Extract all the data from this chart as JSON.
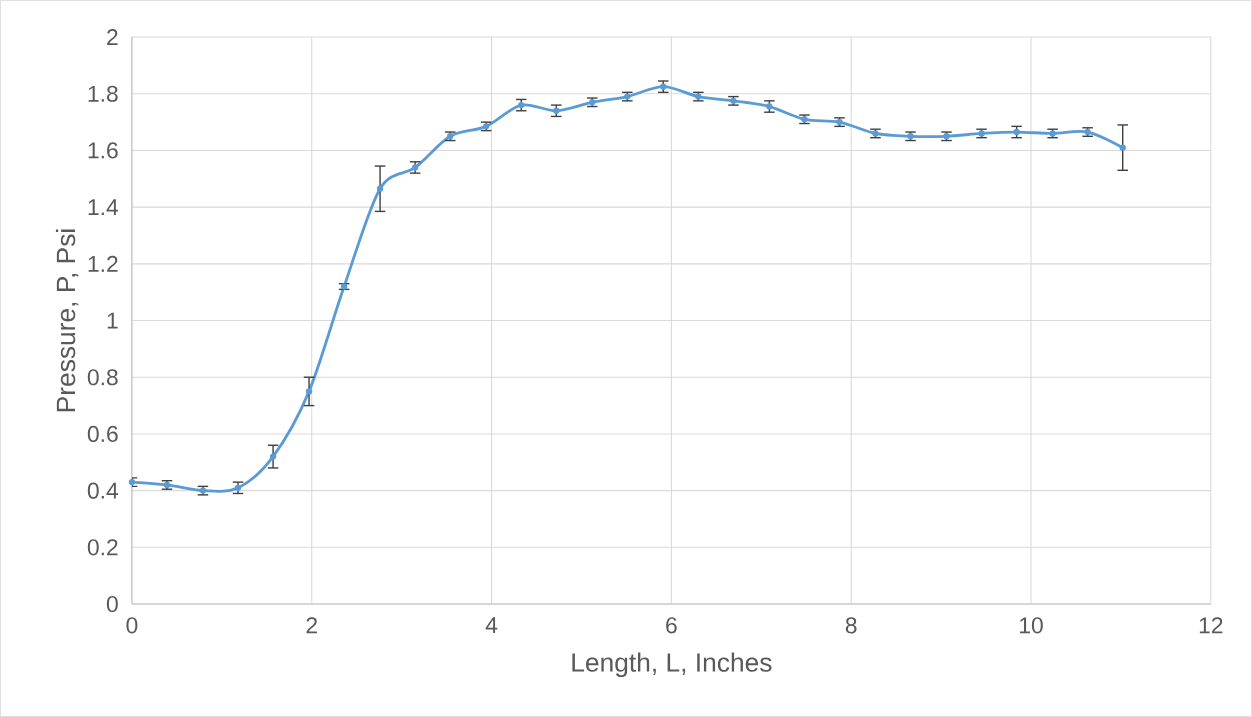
{
  "chart_data": {
    "type": "line",
    "xlabel": "Length, L, Inches",
    "ylabel": "Pressure, P, Psi",
    "xlim": [
      0,
      12
    ],
    "xticks": [
      0,
      2,
      4,
      6,
      8,
      10,
      12
    ],
    "ylim": [
      0,
      2
    ],
    "yticks": [
      0,
      0.2,
      0.4,
      0.6,
      0.8,
      1,
      1.2,
      1.4,
      1.6,
      1.8,
      2
    ],
    "grid": true,
    "marker": "circle",
    "line_style": "solid",
    "series": [
      {
        "color": "#5b9bd5",
        "x": [
          0,
          0.39,
          0.79,
          1.18,
          1.57,
          1.97,
          2.36,
          2.76,
          3.15,
          3.54,
          3.94,
          4.33,
          4.72,
          5.12,
          5.51,
          5.91,
          6.3,
          6.69,
          7.09,
          7.48,
          7.87,
          8.27,
          8.66,
          9.06,
          9.45,
          9.84,
          10.24,
          10.63,
          11.02
        ],
        "values": [
          0.43,
          0.42,
          0.4,
          0.41,
          0.52,
          0.75,
          1.12,
          1.465,
          1.54,
          1.65,
          1.685,
          1.76,
          1.74,
          1.77,
          1.79,
          1.825,
          1.79,
          1.775,
          1.755,
          1.71,
          1.7,
          1.66,
          1.65,
          1.65,
          1.66,
          1.665,
          1.66,
          1.665,
          1.61
        ],
        "errors": [
          0.015,
          0.015,
          0.015,
          0.02,
          0.04,
          0.05,
          0.01,
          0.08,
          0.02,
          0.015,
          0.015,
          0.02,
          0.02,
          0.015,
          0.015,
          0.02,
          0.015,
          0.015,
          0.02,
          0.015,
          0.015,
          0.015,
          0.015,
          0.015,
          0.015,
          0.02,
          0.015,
          0.015,
          0.08
        ]
      }
    ]
  }
}
